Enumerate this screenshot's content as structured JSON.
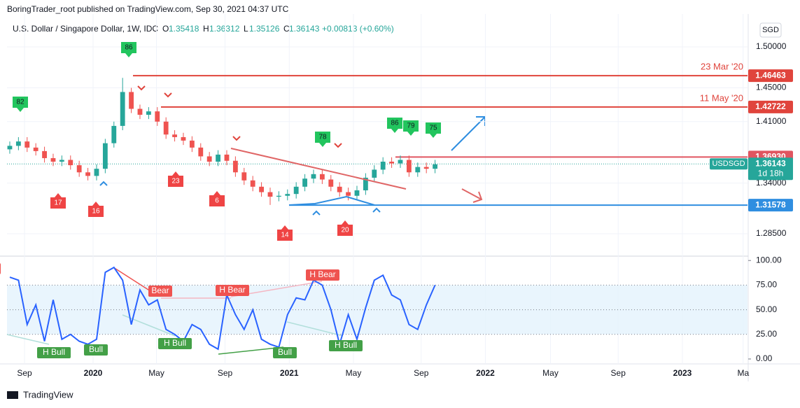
{
  "header": {
    "publisher": "BoringTrader_root published on TradingView.com, Sep 30, 2021 04:37 UTC",
    "symbol": "U.S. Dollar / Singapore Dollar, 1W, IDC",
    "o_label": "O",
    "o_value": "1.35418",
    "h_label": "H",
    "h_value": "1.36312",
    "l_label": "L",
    "l_value": "1.35126",
    "c_label": "C",
    "c_value": "1.36143",
    "change": "+0.00813 (+0.60%)",
    "currency": "SGD"
  },
  "footer": {
    "brand": "TradingView"
  },
  "chart_data": [
    {
      "type": "candlestick",
      "log_scale": true,
      "up_color": "#26a69a",
      "down_color": "#ef5350",
      "open": [
        1.378,
        1.382,
        1.387,
        1.38,
        1.376,
        1.368,
        1.364,
        1.366,
        1.36,
        1.352,
        1.348,
        1.356,
        1.385,
        1.405,
        1.445,
        1.425,
        1.418,
        1.422,
        1.41,
        1.395,
        1.392,
        1.388,
        1.38,
        1.37,
        1.364,
        1.372,
        1.365,
        1.352,
        1.343,
        1.336,
        1.33,
        1.325,
        1.326,
        1.328,
        1.336,
        1.345,
        1.35,
        1.344,
        1.336,
        1.33,
        1.326,
        1.332,
        1.346,
        1.355,
        1.364,
        1.362,
        1.366,
        1.352,
        1.358,
        1.356
      ],
      "high": [
        1.387,
        1.392,
        1.392,
        1.385,
        1.381,
        1.373,
        1.371,
        1.371,
        1.365,
        1.357,
        1.361,
        1.39,
        1.41,
        1.462,
        1.45,
        1.43,
        1.427,
        1.427,
        1.415,
        1.4,
        1.397,
        1.393,
        1.385,
        1.375,
        1.377,
        1.377,
        1.37,
        1.357,
        1.348,
        1.341,
        1.335,
        1.331,
        1.333,
        1.341,
        1.35,
        1.355,
        1.355,
        1.349,
        1.341,
        1.335,
        1.337,
        1.351,
        1.36,
        1.369,
        1.369,
        1.371,
        1.371,
        1.363,
        1.363,
        1.366
      ],
      "low": [
        1.373,
        1.377,
        1.375,
        1.371,
        1.363,
        1.359,
        1.359,
        1.355,
        1.347,
        1.343,
        1.343,
        1.351,
        1.38,
        1.4,
        1.42,
        1.413,
        1.413,
        1.405,
        1.39,
        1.387,
        1.383,
        1.375,
        1.365,
        1.359,
        1.359,
        1.36,
        1.347,
        1.338,
        1.331,
        1.325,
        1.316,
        1.32,
        1.321,
        1.323,
        1.331,
        1.34,
        1.339,
        1.331,
        1.325,
        1.321,
        1.321,
        1.327,
        1.341,
        1.35,
        1.357,
        1.357,
        1.347,
        1.347,
        1.351,
        1.351
      ],
      "close": [
        1.382,
        1.387,
        1.38,
        1.376,
        1.368,
        1.364,
        1.366,
        1.36,
        1.352,
        1.348,
        1.356,
        1.385,
        1.405,
        1.445,
        1.425,
        1.418,
        1.422,
        1.41,
        1.395,
        1.392,
        1.388,
        1.38,
        1.37,
        1.364,
        1.372,
        1.365,
        1.352,
        1.343,
        1.336,
        1.33,
        1.325,
        1.326,
        1.328,
        1.336,
        1.345,
        1.35,
        1.344,
        1.336,
        1.33,
        1.326,
        1.332,
        1.346,
        1.355,
        1.364,
        1.362,
        1.366,
        1.352,
        1.358,
        1.356,
        1.361
      ],
      "xlim": [
        -0.32,
        85.0
      ],
      "xticks": [
        {
          "value": 1.7,
          "label": "Sep"
        },
        {
          "value": 9.6,
          "label": "2020"
        },
        {
          "value": 16.9,
          "label": "May"
        },
        {
          "value": 24.8,
          "label": "Sep"
        },
        {
          "value": 32.2,
          "label": "2021"
        },
        {
          "value": 39.6,
          "label": "May"
        },
        {
          "value": 47.4,
          "label": "Sep"
        },
        {
          "value": 54.8,
          "label": "2022"
        },
        {
          "value": 62.3,
          "label": "May"
        },
        {
          "value": 70.1,
          "label": "Sep"
        },
        {
          "value": 77.5,
          "label": "2023"
        },
        {
          "value": 84.5,
          "label": "Ma"
        }
      ],
      "ylim": [
        1.2621,
        1.5325
      ],
      "yticks": [
        {
          "value": 1.285,
          "label": "1.28500"
        },
        {
          "value": 1.34,
          "label": "1.34000"
        },
        {
          "value": 1.41,
          "label": "1.41000"
        },
        {
          "value": 1.45,
          "label": "1.45000"
        },
        {
          "value": 1.5,
          "label": "1.50000"
        }
      ],
      "levels": [
        {
          "value": 1.46463,
          "label": "1.46463",
          "note": "23 Mar '20",
          "color": "#e0443c"
        },
        {
          "value": 1.42722,
          "label": "1.42722",
          "note": "11 May '20",
          "color": "#e0443c"
        },
        {
          "value": 1.3693,
          "label": "1.36930",
          "color": "#e05560"
        },
        {
          "value": 1.31578,
          "label": "1.31578",
          "color": "#2f8ee0"
        }
      ],
      "last_price": {
        "value": 1.36143,
        "label": "1.36143",
        "symbol": "USDSGD",
        "countdown": "1d 18h",
        "color": "#26a69a"
      },
      "markers_high": [
        82,
        86,
        78,
        86,
        79,
        75
      ],
      "markers_low": [
        17,
        16,
        23,
        6,
        14,
        20
      ]
    },
    {
      "type": "line",
      "color": "#2962ff",
      "values": [
        83,
        80,
        35,
        55,
        18,
        60,
        20,
        25,
        18,
        15,
        20,
        88,
        93,
        80,
        35,
        70,
        55,
        60,
        30,
        25,
        18,
        35,
        30,
        15,
        10,
        65,
        45,
        30,
        50,
        20,
        15,
        12,
        45,
        62,
        60,
        80,
        75,
        50,
        15,
        45,
        20,
        52,
        80,
        85,
        65,
        60,
        35,
        30,
        55,
        75
      ],
      "xlim": [
        -0.32,
        85.0
      ],
      "ylim": [
        -5,
        103
      ],
      "yticks": [
        {
          "value": 0,
          "label": "0.00"
        },
        {
          "value": 25,
          "label": "25.00"
        },
        {
          "value": 50,
          "label": "50.00"
        },
        {
          "value": 75,
          "label": "75.00"
        },
        {
          "value": 100,
          "label": "100.00"
        }
      ],
      "band": [
        25,
        75
      ],
      "divergences": [
        "Bear",
        "Bear",
        "H Bear",
        "H Bear",
        "H Bull",
        "Bull",
        "H Bull",
        "Bull",
        "H Bull"
      ]
    }
  ]
}
